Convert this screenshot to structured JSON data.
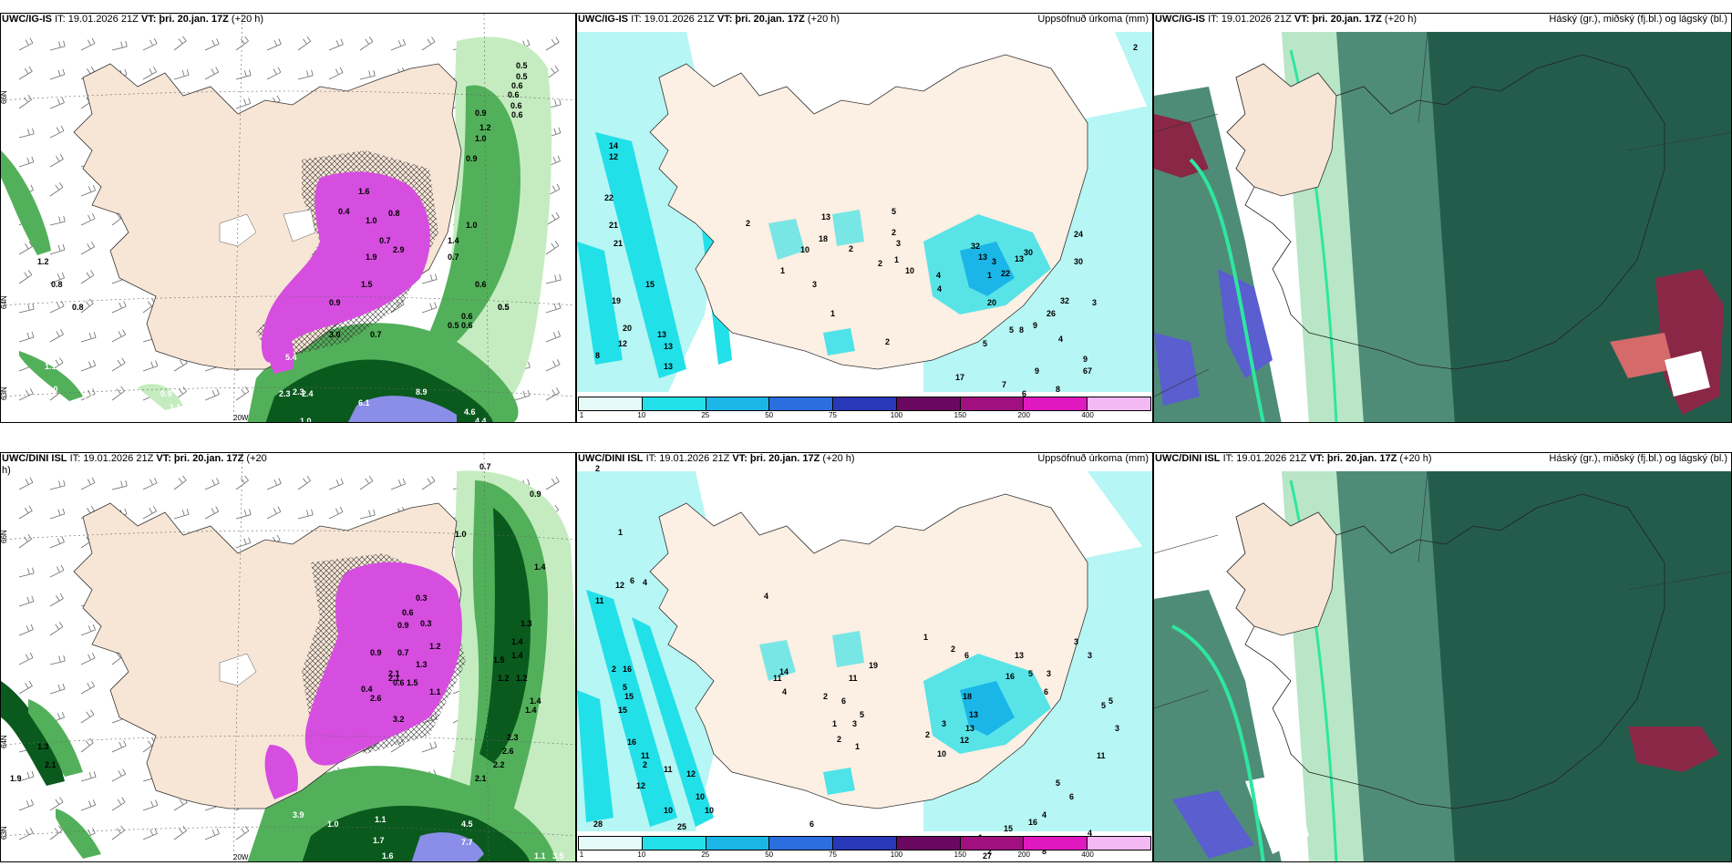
{
  "panels": {
    "top_left": {
      "model": "UWC/IG-IS",
      "it": "IT: 19.01.2026 21Z",
      "vt": "VT: þri. 20.jan. 17Z",
      "lead": "(+20 h)"
    },
    "top_mid": {
      "model": "UWC/IG-IS",
      "it": "IT: 19.01.2026 21Z",
      "vt": "VT: þri. 20.jan. 17Z",
      "lead": "(+20 h)",
      "right_title": "Uppsöfnuð úrkoma (mm)"
    },
    "top_right": {
      "model": "UWC/IG-IS",
      "it": "IT: 19.01.2026 21Z",
      "vt": "VT: þri. 20.jan. 17Z",
      "lead": "(+20 h)",
      "right_title": "Háský (gr.), miðský (fj.bl.) og lágský (bl.)"
    },
    "bot_left": {
      "model": "UWC/DINI ISL",
      "it": "IT: 19.01.2026 21Z",
      "vt": "VT: þri. 20.jan. 17Z",
      "lead": "(+20 h)"
    },
    "bot_mid": {
      "model": "UWC/DINI ISL",
      "it": "IT: 19.01.2026 21Z",
      "vt": "VT: þri. 20.jan. 17Z",
      "lead": "(+20 h)",
      "right_title": "Uppsöfnuð úrkoma (mm)"
    },
    "bot_right": {
      "model": "UWC/DINI ISL",
      "it": "IT: 19.01.2026 21Z",
      "vt": "VT: þri. 20.jan. 17Z",
      "lead": "(+20 h)",
      "right_title": "Háský (gr.), miðský (fj.bl.) og lágský (bl.)"
    }
  },
  "grid_labels": {
    "lat_66": "66N",
    "lat_64": "64N",
    "lat_63": "63N",
    "lon_20": "20W",
    "lon_25": "25W",
    "lat_65r": "65N",
    "lat_64r": "64N"
  },
  "colorbar": {
    "ticks": [
      "1",
      "10",
      "25",
      "50",
      "75",
      "100",
      "150",
      "200",
      "400"
    ],
    "colors": [
      "#e6fafa",
      "#22e0e8",
      "#1ab6e8",
      "#2a6ee0",
      "#2838b8",
      "#6a0860",
      "#a0107e",
      "#e018c0",
      "#f4b8f4"
    ]
  },
  "colors": {
    "land": "#f7e6d6",
    "green_light": "#c5ecc0",
    "green_mid": "#52b05a",
    "green_dark": "#0a5a1e",
    "purple": "#d64ee0",
    "cyan_light": "#b6f6f4",
    "cyan": "#22e0e8",
    "cloud_dark": "#245c4c",
    "cloud_mid": "#4e8c78"
  },
  "labels": {
    "tl": [
      "0.5",
      "0.5",
      "0.6",
      "0.6",
      "0.6",
      "0.9",
      "0.6",
      "1.2",
      "1.0",
      "0.9",
      "1.6",
      "0.4",
      "0.8",
      "1.0",
      "0.7",
      "1.4",
      "2.9",
      "1.9",
      "1.5",
      "1.0",
      "0.7",
      "0.6",
      "0.5",
      "0.6",
      "0.5",
      "3.0",
      "0.7",
      "0.9",
      "0.5",
      "0.6",
      "1.2",
      "0.8",
      "0.8",
      "1.1",
      "1.0",
      "1.9",
      "0.9",
      "1.1",
      "5.4",
      "2.3",
      "2.4",
      "6.1",
      "8.9",
      "4.6",
      "4.4",
      "1.0",
      "2.3"
    ],
    "tm": [
      "2",
      "14",
      "12",
      "22",
      "21",
      "21",
      "19",
      "15",
      "20",
      "13",
      "13",
      "8",
      "12",
      "13",
      "2",
      "1",
      "10",
      "18",
      "13",
      "3",
      "2",
      "2",
      "1",
      "2",
      "1",
      "3",
      "2",
      "5",
      "4",
      "4",
      "10",
      "1",
      "3",
      "20",
      "22",
      "13",
      "30",
      "26",
      "32",
      "30",
      "24",
      "8",
      "9",
      "7",
      "3",
      "6",
      "8",
      "6",
      "7",
      "9",
      "9",
      "4",
      "5",
      "5",
      "17",
      "32",
      "13"
    ],
    "bl": [
      "0.7",
      "0.9",
      "1.0",
      "1.4",
      "1.3",
      "0.3",
      "0.6",
      "0.9",
      "1.2",
      "1.4",
      "0.3",
      "0.7",
      "1.2",
      "2.1",
      "1.3",
      "1.5",
      "1.1",
      "0.6",
      "0.9",
      "0.4",
      "2.1",
      "2.6",
      "3.2",
      "1.4",
      "1.5",
      "2.3",
      "2.6",
      "2.2",
      "2.1",
      "3.9",
      "1.0",
      "1.1",
      "1.7",
      "1.6",
      "4.5",
      "7.7",
      "4.2",
      "3.0",
      "1.1",
      "3.5",
      "0.5",
      "0.6",
      "1.1",
      "1.9",
      "2.1",
      "1.3",
      "1.2",
      "1.4",
      "1.4"
    ],
    "bm": [
      "2",
      "1",
      "12",
      "6",
      "4",
      "11",
      "16",
      "15",
      "15",
      "16",
      "11",
      "12",
      "11",
      "12",
      "25",
      "23",
      "28",
      "10",
      "10",
      "10",
      "2",
      "5",
      "2",
      "4",
      "11",
      "14",
      "4",
      "19",
      "11",
      "6",
      "5",
      "3",
      "2",
      "1",
      "2",
      "1",
      "2",
      "3",
      "10",
      "18",
      "12",
      "13",
      "13",
      "1",
      "2",
      "6",
      "16",
      "13",
      "5",
      "3",
      "6",
      "3",
      "3",
      "5",
      "5",
      "3",
      "11",
      "5",
      "4",
      "6",
      "16",
      "15",
      "6",
      "1",
      "27",
      "2",
      "8",
      "4",
      "6"
    ]
  }
}
